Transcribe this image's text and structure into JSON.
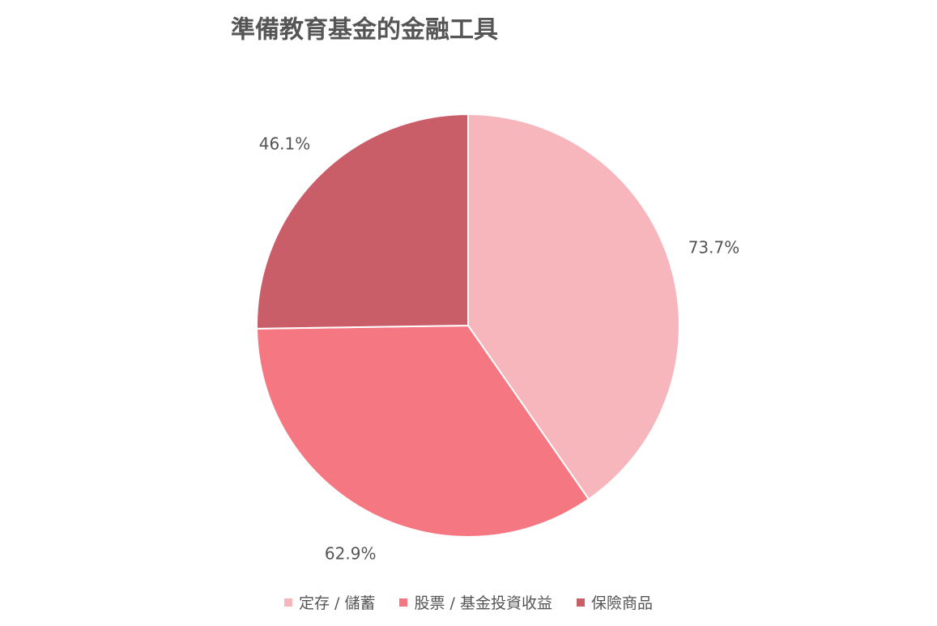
{
  "chart_data": {
    "type": "pie",
    "title": "準備教育基金的金融工具",
    "categories": [
      "定存 / 儲蓄",
      "股票 / 基金投資收益",
      "保險商品"
    ],
    "values": [
      73.7,
      62.9,
      46.1
    ],
    "value_labels": [
      "73.7%",
      "62.9%",
      "46.1%"
    ],
    "colors": [
      "#f7b6bc",
      "#f47782",
      "#c95d68"
    ],
    "legend": "bottom"
  }
}
